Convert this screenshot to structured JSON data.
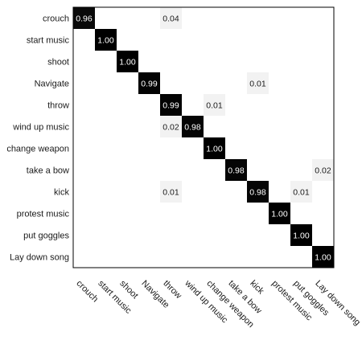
{
  "chart_data": {
    "type": "heatmap",
    "title": "",
    "xlabel": "",
    "ylabel": "",
    "color_low": "#ffffff",
    "color_high": "#000000",
    "text_dark": "#1a1a1a",
    "text_light": "#ffffff",
    "row_labels": [
      "crouch",
      "start music",
      "shoot",
      "Navigate",
      "throw",
      "wind up music",
      "change weapon",
      "take a bow",
      "kick",
      "protest music",
      "put goggles",
      "Lay down song"
    ],
    "col_labels": [
      "crouch",
      "start music",
      "shoot",
      "Navigate",
      "throw",
      "wind up music",
      "change weapon",
      "take a bow",
      "kick",
      "protest music",
      "put goggles",
      "Lay down song"
    ],
    "cells": [
      {
        "row": 0,
        "col": 0,
        "value": 0.96,
        "label": "0.96"
      },
      {
        "row": 0,
        "col": 4,
        "value": 0.04,
        "label": "0.04"
      },
      {
        "row": 1,
        "col": 1,
        "value": 1.0,
        "label": "1.00"
      },
      {
        "row": 2,
        "col": 2,
        "value": 1.0,
        "label": "1.00"
      },
      {
        "row": 3,
        "col": 3,
        "value": 0.99,
        "label": "0.99"
      },
      {
        "row": 3,
        "col": 8,
        "value": 0.01,
        "label": "0.01"
      },
      {
        "row": 4,
        "col": 4,
        "value": 0.99,
        "label": "0.99"
      },
      {
        "row": 4,
        "col": 6,
        "value": 0.01,
        "label": "0.01"
      },
      {
        "row": 5,
        "col": 4,
        "value": 0.02,
        "label": "0.02"
      },
      {
        "row": 5,
        "col": 5,
        "value": 0.98,
        "label": "0.98"
      },
      {
        "row": 6,
        "col": 6,
        "value": 1.0,
        "label": "1.00"
      },
      {
        "row": 7,
        "col": 7,
        "value": 0.98,
        "label": "0.98"
      },
      {
        "row": 7,
        "col": 11,
        "value": 0.02,
        "label": "0.02"
      },
      {
        "row": 8,
        "col": 4,
        "value": 0.01,
        "label": "0.01"
      },
      {
        "row": 8,
        "col": 8,
        "value": 0.98,
        "label": "0.98"
      },
      {
        "row": 8,
        "col": 10,
        "value": 0.01,
        "label": "0.01"
      },
      {
        "row": 9,
        "col": 9,
        "value": 1.0,
        "label": "1.00"
      },
      {
        "row": 10,
        "col": 10,
        "value": 1.0,
        "label": "1.00"
      },
      {
        "row": 11,
        "col": 11,
        "value": 1.0,
        "label": "1.00"
      }
    ]
  }
}
